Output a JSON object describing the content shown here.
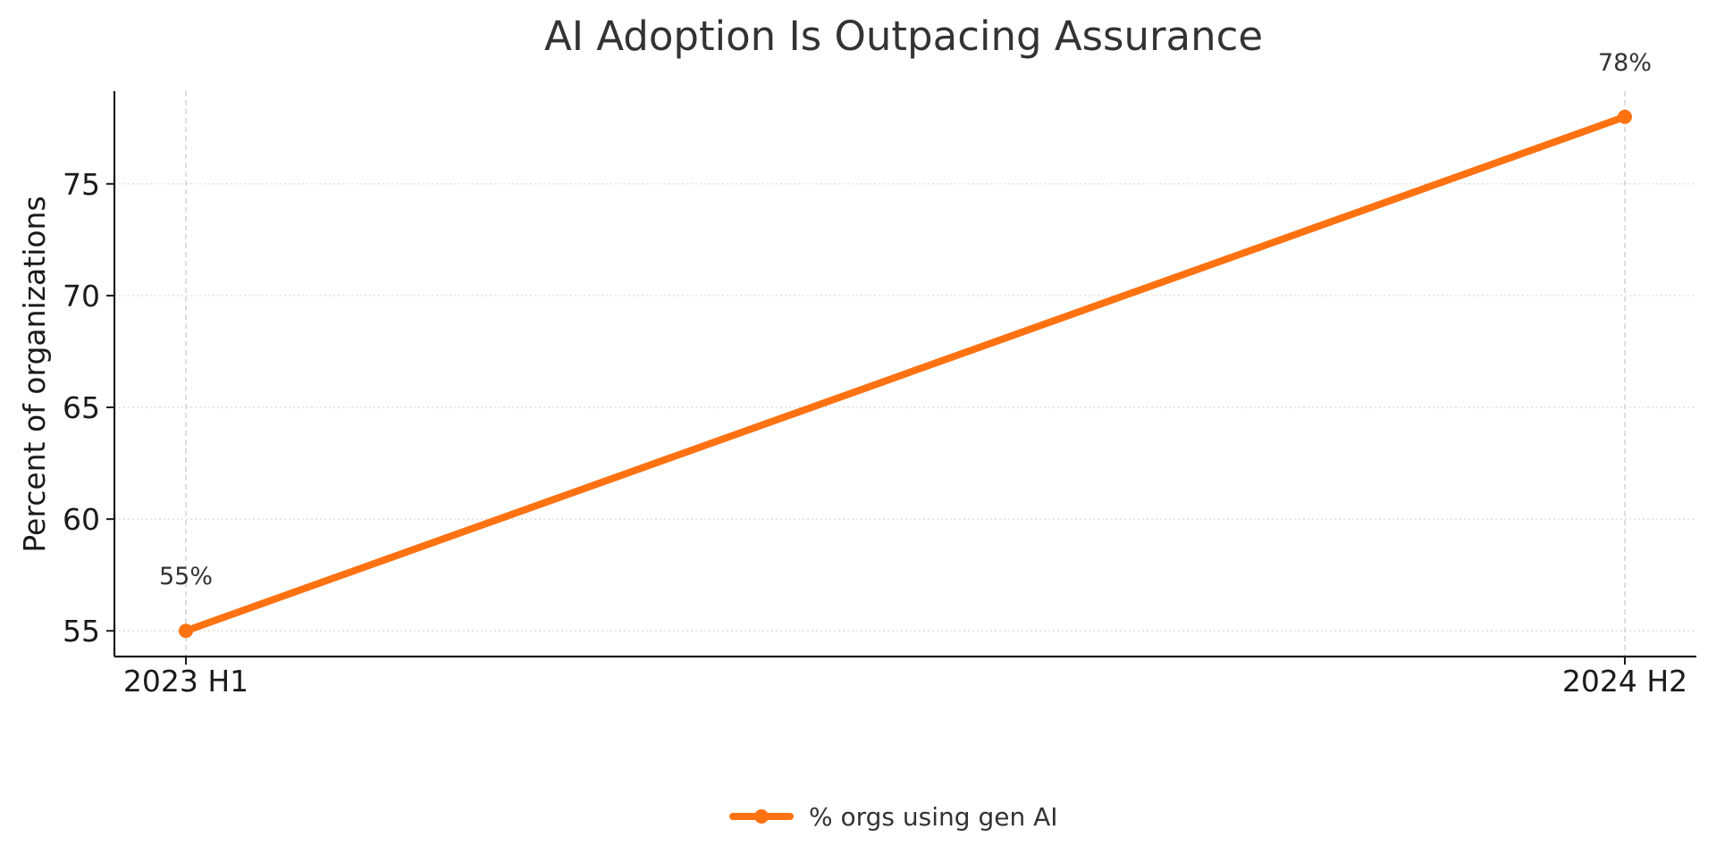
{
  "chart_data": {
    "type": "line",
    "title": "AI Adoption Is Outpacing Assurance",
    "xlabel": "",
    "ylabel": "Percent of organizations",
    "categories": [
      "2023 H1",
      "2024 H2"
    ],
    "series": [
      {
        "name": "% orgs using gen AI",
        "values": [
          55,
          78
        ],
        "data_labels": [
          "55%",
          "78%"
        ],
        "color": "#ff7212"
      }
    ],
    "ylim": [
      53.85,
      79.15
    ],
    "yticks": [
      55,
      60,
      65,
      70,
      75
    ],
    "grid": true,
    "legend_position": "bottom-center"
  }
}
